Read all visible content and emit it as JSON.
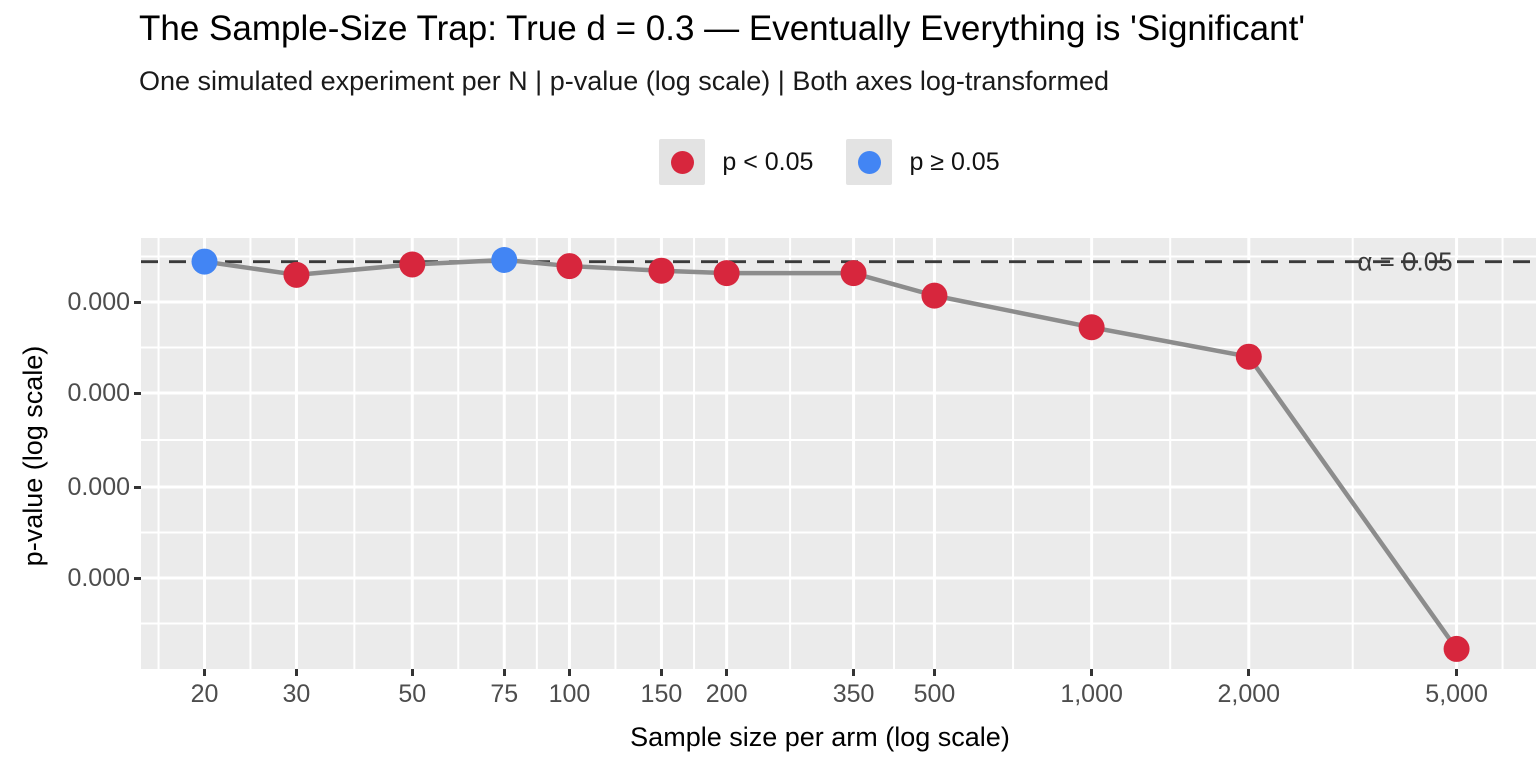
{
  "header": {
    "title": "The Sample-Size Trap: True d = 0.3 — Eventually Everything is 'Significant'",
    "subtitle": "One simulated experiment per N | p-value (log scale) | Both axes log-transformed"
  },
  "axes": {
    "x_title": "Sample size per arm (log scale)",
    "y_title": "p-value (log scale)"
  },
  "legend": {
    "position": "top-center",
    "key_background": "#e3e3e3",
    "items": [
      {
        "label": "p < 0.05",
        "color": "#d7263d"
      },
      {
        "label": "p ≥ 0.05",
        "color": "#4285f4"
      }
    ]
  },
  "chart_data": {
    "type": "line",
    "title": "The Sample-Size Trap: True d = 0.3 — Eventually Everything is 'Significant'",
    "subtitle": "One simulated experiment per N | p-value (log scale) | Both axes log-transformed",
    "xlabel": "Sample size per arm (log scale)",
    "ylabel": "p-value (log scale)",
    "x_scale": "log10",
    "y_scale": "log10",
    "grid": true,
    "panel_background": "#ebebeb",
    "grid_color": "#ffffff",
    "line_color": "#8c8c8c",
    "tick_text_color": "#4d4d4d",
    "x_ticks": [
      20,
      30,
      50,
      75,
      100,
      150,
      200,
      350,
      500,
      1000,
      2000,
      5000
    ],
    "x_tick_labels": [
      "20",
      "30",
      "50",
      "75",
      "100",
      "150",
      "200",
      "350",
      "500",
      "1,000",
      "2,000",
      "5,000"
    ],
    "y_tick_labels": [
      "0.000",
      "0.000",
      "0.000",
      "0.000"
    ],
    "reference_line": {
      "value": 0.05,
      "label": "α = 0.05",
      "style": "dashed",
      "color": "#3a3a3a"
    },
    "series_colors": {
      "significant": "#d7263d",
      "not_significant": "#4285f4"
    },
    "points": [
      {
        "n": 20,
        "p": 0.051,
        "significant": false
      },
      {
        "n": 30,
        "p": 0.007,
        "significant": true
      },
      {
        "n": 50,
        "p": 0.033,
        "significant": true
      },
      {
        "n": 75,
        "p": 0.065,
        "significant": false
      },
      {
        "n": 100,
        "p": 0.026,
        "significant": true
      },
      {
        "n": 150,
        "p": 0.013,
        "significant": true
      },
      {
        "n": 200,
        "p": 0.009,
        "significant": true
      },
      {
        "n": 350,
        "p": 0.009,
        "significant": true
      },
      {
        "n": 500,
        "p": 0.00031,
        "significant": true
      },
      {
        "n": 1000,
        "p": 2.7e-06,
        "significant": true
      },
      {
        "n": 2000,
        "p": 3.3e-08,
        "significant": true
      },
      {
        "n": 5000,
        "p": 3.2e-27,
        "significant": true
      }
    ]
  }
}
